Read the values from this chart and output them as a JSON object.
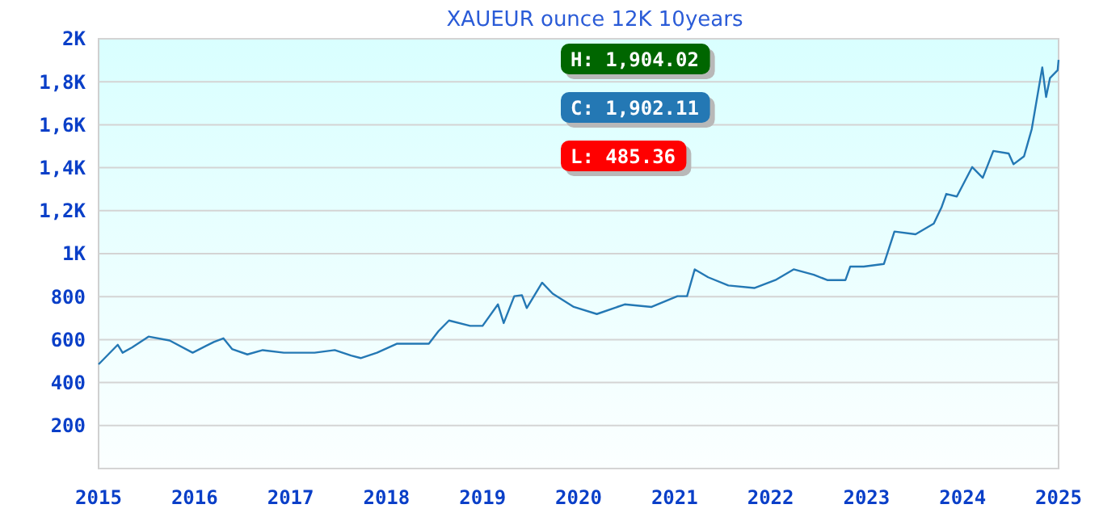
{
  "chart_data": {
    "type": "line",
    "title": "XAUEUR ounce 12K 10years",
    "x": [
      2015.0,
      2015.2,
      2015.25,
      2015.35,
      2015.52,
      2015.74,
      2015.98,
      2016.2,
      2016.3,
      2016.39,
      2016.55,
      2016.71,
      2016.93,
      2017.25,
      2017.46,
      2017.63,
      2017.73,
      2017.9,
      2018.11,
      2018.44,
      2018.54,
      2018.65,
      2018.87,
      2019.0,
      2019.16,
      2019.22,
      2019.33,
      2019.41,
      2019.46,
      2019.62,
      2019.73,
      2019.95,
      2020.19,
      2020.48,
      2020.76,
      2021.03,
      2021.13,
      2021.21,
      2021.35,
      2021.56,
      2021.83,
      2022.05,
      2022.24,
      2022.45,
      2022.59,
      2022.78,
      2022.83,
      2022.97,
      2023.18,
      2023.29,
      2023.51,
      2023.7,
      2023.78,
      2023.83,
      2023.94,
      2024.1,
      2024.21,
      2024.32,
      2024.48,
      2024.53,
      2024.64,
      2024.72,
      2024.83,
      2024.87,
      2024.91,
      2024.99,
      2025.0
    ],
    "series": [
      {
        "color": "#2478b4",
        "values": [
          485,
          576,
          539,
          564,
          614,
          596,
          539,
          589,
          606,
          556,
          531,
          551,
          539,
          539,
          551,
          526,
          514,
          539,
          581,
          581,
          639,
          689,
          664,
          664,
          764,
          677,
          802,
          807,
          747,
          865,
          814,
          752,
          719,
          764,
          752,
          802,
          802,
          927,
          890,
          852,
          840,
          877,
          927,
          902,
          877,
          877,
          940,
          940,
          952,
          1103,
          1090,
          1140,
          1215,
          1278,
          1266,
          1403,
          1353,
          1478,
          1466,
          1416,
          1453,
          1579,
          1867,
          1729,
          1817,
          1854,
          1902
        ]
      }
    ],
    "xlim": [
      2015,
      2025
    ],
    "xticks": [
      2015,
      2016,
      2017,
      2018,
      2019,
      2020,
      2021,
      2022,
      2023,
      2024,
      2025
    ],
    "ylim": [
      0,
      2000
    ],
    "yticks": [
      {
        "value": 0,
        "label": null
      },
      200,
      400,
      600,
      800,
      {
        "value": 1000,
        "label": "1K"
      },
      {
        "value": 1200,
        "label": "1,2K"
      },
      {
        "value": 1400,
        "label": "1,4K"
      },
      {
        "value": 1600,
        "label": "1,6K"
      },
      {
        "value": 1800,
        "label": "1,8K"
      },
      {
        "value": 2000,
        "label": "2K"
      }
    ],
    "grid": "y",
    "line_style": "solid",
    "marker": "none",
    "annotations": [
      "H: 1,904.02",
      "C: 1,902.11",
      "L: 485.36"
    ]
  }
}
